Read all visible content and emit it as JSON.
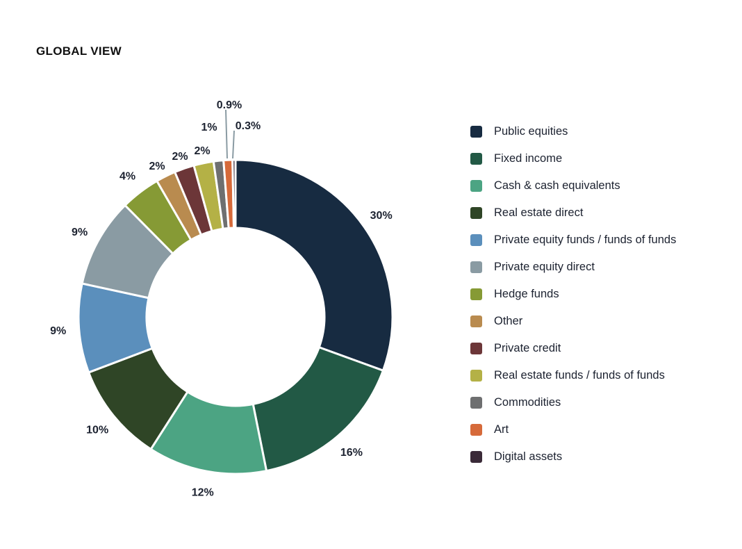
{
  "chart_data": {
    "type": "pie",
    "variant": "donut",
    "title": "GLOBAL VIEW",
    "legend_position": "right",
    "slices": [
      {
        "label": "Public equities",
        "value": 30,
        "display": "30%",
        "color": "#172b41"
      },
      {
        "label": "Fixed income",
        "value": 16,
        "display": "16%",
        "color": "#225945"
      },
      {
        "label": "Cash & cash equivalents",
        "value": 12,
        "display": "12%",
        "color": "#4ca483"
      },
      {
        "label": "Real estate direct",
        "value": 10,
        "display": "10%",
        "color": "#2f4526"
      },
      {
        "label": "Private equity funds /  funds of funds",
        "value": 9,
        "display": "9%",
        "color": "#5b8fbc"
      },
      {
        "label": "Private equity direct",
        "value": 9,
        "display": "9%",
        "color": "#8a9ba3"
      },
      {
        "label": "Hedge funds",
        "value": 4,
        "display": "4%",
        "color": "#869a35"
      },
      {
        "label": "Other",
        "value": 2,
        "display": "2%",
        "color": "#b98b4f"
      },
      {
        "label": "Private credit",
        "value": 2,
        "display": "2%",
        "color": "#6c3638"
      },
      {
        "label": "Real estate funds / funds of funds",
        "value": 2,
        "display": "2%",
        "color": "#b4b146"
      },
      {
        "label": "Commodities",
        "value": 1,
        "display": "1%",
        "color": "#6e6f70"
      },
      {
        "label": "Art",
        "value": 0.9,
        "display": "0.9%",
        "color": "#d66a3a"
      },
      {
        "label": "Digital assets",
        "value": 0.3,
        "display": "0.3%",
        "color": "#3a2a38"
      }
    ]
  }
}
